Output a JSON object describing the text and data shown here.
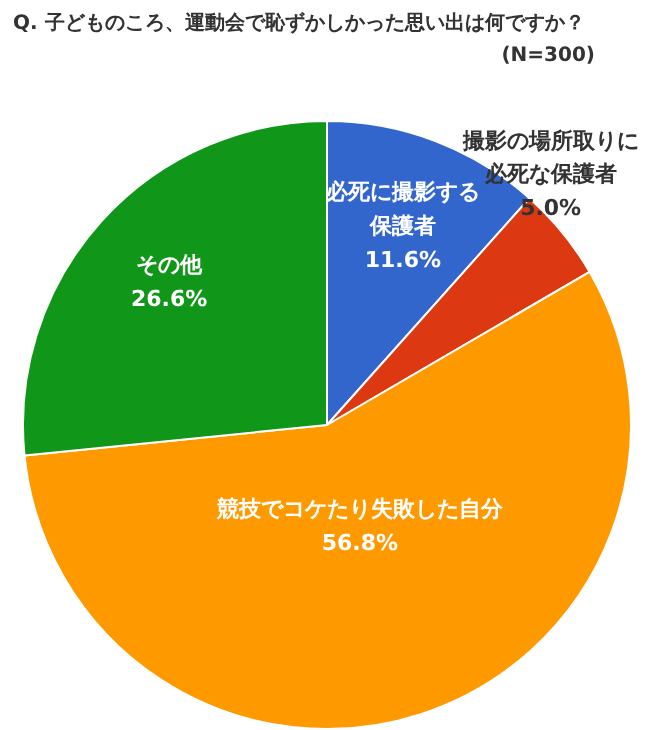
{
  "chart_data": {
    "type": "pie",
    "title": "Q. 子どものころ、運動会で恥ずかしかった思い出は何ですか？",
    "subtitle": "(N=300)",
    "categories": [
      "必死に撮影する保護者",
      "撮影の場所取りに必死な保護者",
      "競技でコケたり失敗した自分",
      "その他"
    ],
    "values": [
      11.6,
      5.0,
      56.8,
      26.6
    ],
    "colors": [
      "#3366cc",
      "#dc3912",
      "#ff9900",
      "#109618"
    ],
    "value_labels": [
      "11.6%",
      "5.0%",
      "56.8%",
      "26.6%"
    ]
  }
}
